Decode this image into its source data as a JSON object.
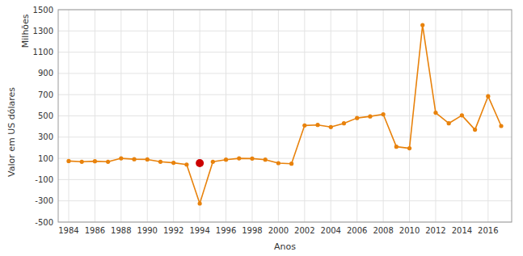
{
  "chart_data": {
    "type": "line",
    "xlabel": "Anos",
    "ylabel": "Valor em US dólares",
    "annotations": [
      "Milhões"
    ],
    "x": [
      1984,
      1985,
      1986,
      1987,
      1988,
      1989,
      1990,
      1991,
      1992,
      1993,
      1994,
      1995,
      1996,
      1997,
      1998,
      1999,
      2000,
      2001,
      2002,
      2003,
      2004,
      2005,
      2006,
      2007,
      2008,
      2009,
      2010,
      2011,
      2012,
      2013,
      2014,
      2015,
      2016,
      2017
    ],
    "series": [
      {
        "color": "#E8820C",
        "marker": "circle",
        "values": [
          75,
          68,
          73,
          68,
          100,
          92,
          90,
          68,
          58,
          42,
          -325,
          68,
          88,
          100,
          98,
          88,
          55,
          50,
          410,
          415,
          395,
          430,
          480,
          495,
          515,
          210,
          195,
          1355,
          530,
          430,
          505,
          370,
          685,
          405
        ]
      },
      {
        "type": "scatter",
        "color": "#CC0000",
        "marker": "circle",
        "values": [
          null,
          null,
          null,
          null,
          null,
          null,
          null,
          null,
          null,
          null,
          55,
          null,
          null,
          null,
          null,
          null,
          null,
          null,
          null,
          null,
          null,
          null,
          null,
          null,
          null,
          null,
          null,
          null,
          null,
          null,
          null,
          null,
          null,
          null
        ]
      }
    ],
    "xlim": [
      1983.2,
      2017.8
    ],
    "xticks": [
      1984,
      1986,
      1988,
      1990,
      1992,
      1994,
      1996,
      1998,
      2000,
      2002,
      2004,
      2006,
      2008,
      2010,
      2012,
      2014,
      2016
    ],
    "ylim": [
      -500,
      1500
    ],
    "yticks": [
      -500,
      -300,
      -100,
      100,
      300,
      500,
      700,
      900,
      1100,
      1300,
      1500
    ],
    "grid": true
  }
}
